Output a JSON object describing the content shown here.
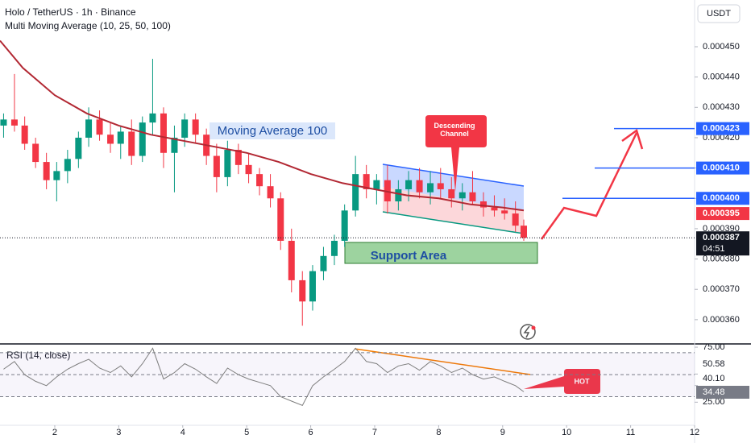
{
  "header": {
    "symbol": "Holo / TetherUS · 1h · Binance",
    "indicator": "Multi Moving Average (10, 25, 50, 100)",
    "currency": "USDT"
  },
  "chart_data": {
    "type": "candlestick",
    "x": [
      1.2,
      1.37,
      1.53,
      1.7,
      1.87,
      2.03,
      2.2,
      2.37,
      2.53,
      2.7,
      2.87,
      3.03,
      3.2,
      3.37,
      3.53,
      3.7,
      3.87,
      4.03,
      4.2,
      4.37,
      4.53,
      4.7,
      4.87,
      5.03,
      5.2,
      5.37,
      5.53,
      5.7,
      5.87,
      6.03,
      6.2,
      6.37,
      6.53,
      6.7,
      6.87,
      7.03,
      7.2,
      7.37,
      7.53,
      7.7,
      7.87,
      8.03,
      8.2,
      8.37,
      8.53,
      8.7,
      8.87,
      9.03,
      9.2,
      9.33
    ],
    "open": [
      0.000424,
      0.000426,
      0.000424,
      0.000418,
      0.000412,
      0.000406,
      0.000409,
      0.000413,
      0.00042,
      0.000426,
      0.000421,
      0.000418,
      0.000422,
      0.000414,
      0.000425,
      0.000428,
      0.000415,
      0.00042,
      0.000426,
      0.000421,
      0.000414,
      0.000407,
      0.000416,
      0.000411,
      0.000408,
      0.000404,
      0.0004,
      0.000386,
      0.000373,
      0.000366,
      0.000376,
      0.000381,
      0.000386,
      0.000396,
      0.000408,
      0.000403,
      0.000406,
      0.000399,
      0.000403,
      0.000406,
      0.000402,
      0.000405,
      0.000403,
      0.0004,
      0.000402,
      0.000399,
      0.000397,
      0.000396,
      0.000395,
      0.000391
    ],
    "high": [
      0.000428,
      0.000441,
      0.000427,
      0.00042,
      0.000415,
      0.000412,
      0.000416,
      0.000422,
      0.00043,
      0.000429,
      0.000425,
      0.000424,
      0.000426,
      0.000427,
      0.000446,
      0.00043,
      0.000424,
      0.000428,
      0.000428,
      0.000423,
      0.000418,
      0.000419,
      0.000418,
      0.000415,
      0.00041,
      0.000408,
      0.000402,
      0.00039,
      0.000376,
      0.000378,
      0.000384,
      0.000388,
      0.000398,
      0.000414,
      0.000411,
      0.000408,
      0.000411,
      0.000406,
      0.000409,
      0.00041,
      0.000409,
      0.00041,
      0.000407,
      0.000405,
      0.000409,
      0.000402,
      0.000401,
      0.0004,
      0.000399,
      0.000393
    ],
    "low": [
      0.00042,
      0.000422,
      0.000416,
      0.00041,
      0.000403,
      0.000399,
      0.000405,
      0.00041,
      0.000417,
      0.000419,
      0.000415,
      0.000413,
      0.000411,
      0.000412,
      0.000421,
      0.00041,
      0.000402,
      0.000417,
      0.000418,
      0.000411,
      0.000402,
      0.000404,
      0.000408,
      0.000405,
      0.000401,
      0.000397,
      0.000383,
      0.000369,
      0.000358,
      0.000363,
      0.000373,
      0.000378,
      0.000384,
      0.000394,
      0.0004,
      0.000398,
      0.000395,
      0.000396,
      0.000399,
      0.0004,
      0.000398,
      0.0004,
      0.000397,
      0.000396,
      0.000398,
      0.000394,
      0.000394,
      0.000393,
      0.000389,
      0.000386
    ],
    "close": [
      0.000426,
      0.000424,
      0.000418,
      0.000412,
      0.000406,
      0.000409,
      0.000413,
      0.00042,
      0.000426,
      0.000421,
      0.000418,
      0.000422,
      0.000414,
      0.000425,
      0.000428,
      0.000415,
      0.00042,
      0.000426,
      0.000421,
      0.000414,
      0.000407,
      0.000416,
      0.000411,
      0.000408,
      0.000404,
      0.0004,
      0.000386,
      0.000373,
      0.000366,
      0.000376,
      0.000381,
      0.000386,
      0.000396,
      0.000408,
      0.000403,
      0.000406,
      0.000399,
      0.000403,
      0.000406,
      0.000402,
      0.000405,
      0.000403,
      0.0004,
      0.000402,
      0.000399,
      0.000397,
      0.000396,
      0.000395,
      0.000391,
      0.000387
    ],
    "up_color": "#089981",
    "down_color": "#f23645",
    "ma": {
      "name": "Moving Average 100",
      "color": "#b22833",
      "x": [
        1.144,
        1.5,
        2.0,
        2.5,
        3.0,
        3.5,
        4.0,
        4.5,
        5.0,
        5.5,
        6.0,
        6.5,
        7.0,
        7.5,
        8.0,
        8.5,
        9.0,
        9.33
      ],
      "values": [
        0.000452,
        0.000443,
        0.000434,
        0.000428,
        0.000424,
        0.000421,
        0.000419,
        0.000417,
        0.000415,
        0.000412,
        0.000408,
        0.000405,
        0.000403,
        0.000401,
        0.0004,
        0.000398,
        0.000397,
        0.000396
      ]
    },
    "xlim": [
      1.144,
      12.0
    ],
    "xticks": [
      2,
      3,
      4,
      5,
      6,
      7,
      8,
      9,
      10,
      11,
      12
    ],
    "ylim": [
      0.000352,
      0.0004654
    ],
    "yticks": [
      {
        "value": 0.00045,
        "label": "0.000450"
      },
      {
        "value": 0.00044,
        "label": "0.000440"
      },
      {
        "value": 0.00043,
        "label": "0.000430"
      },
      {
        "value": 0.00042,
        "label": "0.000420"
      },
      {
        "value": 0.00041,
        "label": "0.000410"
      },
      {
        "value": 0.0004,
        "label": "0.000400"
      },
      {
        "value": 0.00039,
        "label": "0.000390"
      },
      {
        "value": 0.00038,
        "label": "0.000380"
      },
      {
        "value": 0.00037,
        "label": "0.000370"
      },
      {
        "value": 0.00036,
        "label": "0.000360"
      }
    ],
    "price_labels": [
      {
        "value": 0.000423,
        "color": "#2962ff"
      },
      {
        "value": 0.00041,
        "label": "0.000410",
        "color": "#2962ff"
      },
      {
        "value": 0.0004,
        "label": "0.000400",
        "color": "#2962ff"
      },
      {
        "value": 0.000395,
        "color": "#f23645"
      }
    ],
    "current": {
      "value": 0.000387,
      "countdown": "04:51"
    },
    "annotations": [
      "Descending Channel",
      "Support Area",
      "HOT"
    ],
    "rsi": {
      "name": "RSI (14, close)",
      "color": "#7e7e7e",
      "values": [
        55,
        62,
        50,
        44,
        40,
        48,
        55,
        60,
        64,
        56,
        52,
        58,
        48,
        60,
        74,
        46,
        52,
        60,
        55,
        48,
        42,
        56,
        50,
        46,
        43,
        40,
        30,
        26,
        22,
        40,
        48,
        55,
        62,
        74,
        62,
        60,
        52,
        58,
        60,
        54,
        62,
        58,
        52,
        56,
        50,
        46,
        48,
        44,
        40,
        34.48
      ],
      "ylim": [
        4,
        76.5
      ],
      "levels": [
        70,
        50,
        30
      ],
      "yticks": [
        {
          "value": 75,
          "label": "75.00"
        },
        {
          "value": 25,
          "label": "25.00"
        }
      ],
      "markers": [
        50.58,
        {
          "value": 40.1,
          "label": "40.10"
        }
      ]
    }
  }
}
